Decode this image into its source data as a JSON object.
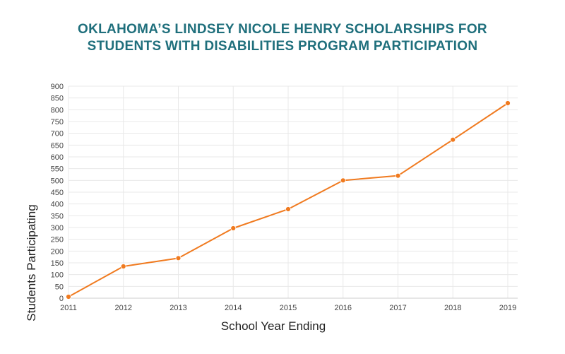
{
  "chart_data": {
    "type": "line",
    "title_lines": [
      "OKLAHOMA’S LINDSEY NICOLE HENRY SCHOLARSHIPS FOR",
      "STUDENTS WITH DISABILITIES PROGRAM PARTICIPATION"
    ],
    "xlabel": "School Year Ending",
    "ylabel": "Students Participating",
    "x": [
      "2011",
      "2012",
      "2013",
      "2014",
      "2015",
      "2016",
      "2017",
      "2018",
      "2019"
    ],
    "series": [
      {
        "values": [
          6,
          135,
          170,
          297,
          378,
          500,
          520,
          673,
          828
        ]
      }
    ],
    "ylim": [
      0,
      900
    ],
    "y_ticks": [
      0,
      50,
      100,
      150,
      200,
      250,
      300,
      350,
      400,
      450,
      500,
      550,
      600,
      650,
      700,
      750,
      800,
      850,
      900
    ],
    "grid": true,
    "colors": {
      "line": "#f07a1f",
      "marker": "#f07a1f",
      "title": "#1f6f7c",
      "grid": "#e8e8e8"
    }
  }
}
